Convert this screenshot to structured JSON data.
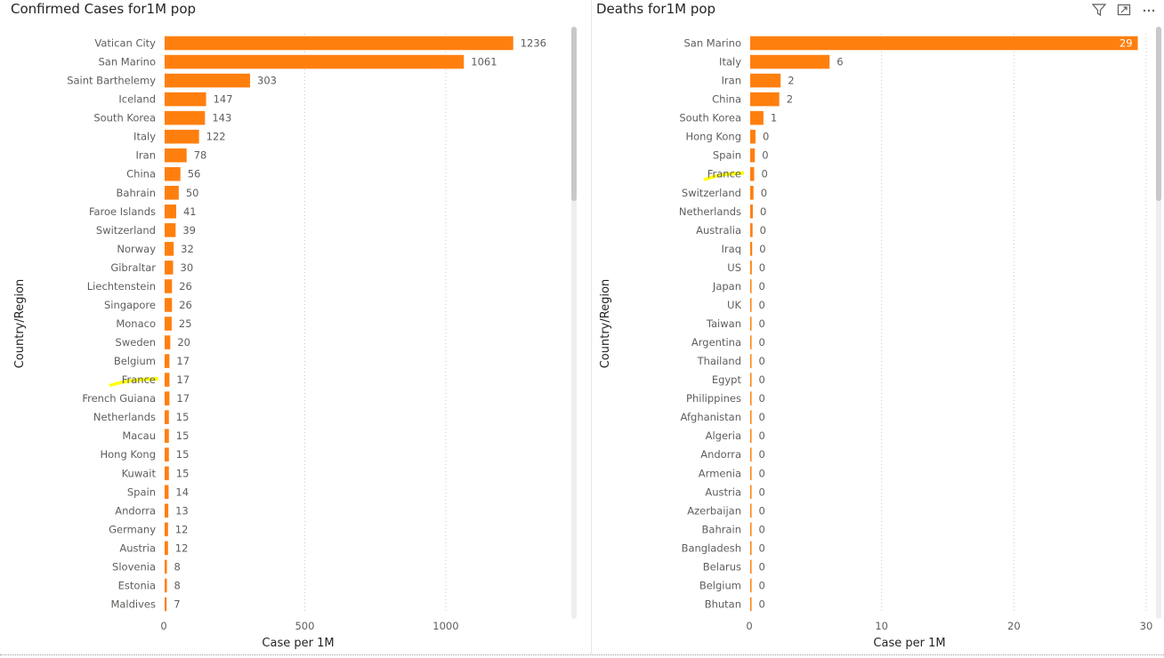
{
  "charts_meta": {
    "left_title": "Confirmed Cases for1M pop",
    "right_title": "Deaths for1M pop"
  },
  "header_icons": [
    "filter-icon",
    "focus-mode-icon",
    "more-options-icon"
  ],
  "colors": {
    "bar": "#ff7f0e",
    "highlight": "#ffff00",
    "grid": "#c8c8c8"
  },
  "chart_data": [
    {
      "type": "bar",
      "orientation": "horizontal",
      "title": "Confirmed Cases for1M pop",
      "xlabel": "Case per 1M",
      "ylabel": "Country/Region",
      "xlim": [
        0,
        1300
      ],
      "xticks": [
        0,
        500,
        1000
      ],
      "grid": true,
      "highlighted_category": "France",
      "categories": [
        "Vatican City",
        "San Marino",
        "Saint Barthelemy",
        "Iceland",
        "South Korea",
        "Italy",
        "Iran",
        "China",
        "Bahrain",
        "Faroe Islands",
        "Switzerland",
        "Norway",
        "Gibraltar",
        "Liechtenstein",
        "Singapore",
        "Monaco",
        "Sweden",
        "Belgium",
        "France",
        "French Guiana",
        "Netherlands",
        "Macau",
        "Hong Kong",
        "Kuwait",
        "Spain",
        "Andorra",
        "Germany",
        "Austria",
        "Slovenia",
        "Estonia",
        "Maldives"
      ],
      "values": [
        1236,
        1061,
        303,
        147,
        143,
        122,
        78,
        56,
        50,
        41,
        39,
        32,
        30,
        26,
        26,
        25,
        20,
        17,
        17,
        17,
        15,
        15,
        15,
        15,
        14,
        13,
        12,
        12,
        8,
        8,
        7
      ]
    },
    {
      "type": "bar",
      "orientation": "horizontal",
      "title": "Deaths for1M pop",
      "xlabel": "Case per 1M",
      "ylabel": "Country/Region",
      "xlim": [
        0,
        30
      ],
      "xticks": [
        0,
        10,
        20,
        30
      ],
      "grid": true,
      "highlighted_category": "France",
      "categories": [
        "San Marino",
        "Italy",
        "Iran",
        "China",
        "South Korea",
        "Hong Kong",
        "Spain",
        "France",
        "Switzerland",
        "Netherlands",
        "Australia",
        "Iraq",
        "US",
        "Japan",
        "UK",
        "Taiwan",
        "Argentina",
        "Thailand",
        "Egypt",
        "Philippines",
        "Afghanistan",
        "Algeria",
        "Andorra",
        "Armenia",
        "Austria",
        "Azerbaijan",
        "Bahrain",
        "Bangladesh",
        "Belarus",
        "Belgium",
        "Bhutan"
      ],
      "values": [
        29.3,
        6,
        2.3,
        2.2,
        1,
        0.4,
        0.35,
        0.3,
        0.25,
        0.2,
        0.18,
        0.15,
        0.12,
        0.1,
        0.08,
        0.06,
        0.05,
        0.05,
        0.05,
        0.04,
        0.03,
        0.03,
        0.03,
        0.03,
        0.03,
        0.03,
        0.03,
        0.03,
        0.03,
        0.03,
        0.03
      ],
      "value_labels": [
        "29",
        "6",
        "2",
        "2",
        "1",
        "0",
        "0",
        "0",
        "0",
        "0",
        "0",
        "0",
        "0",
        "0",
        "0",
        "0",
        "0",
        "0",
        "0",
        "0",
        "0",
        "0",
        "0",
        "0",
        "0",
        "0",
        "0",
        "0",
        "0",
        "0",
        "0"
      ]
    }
  ]
}
